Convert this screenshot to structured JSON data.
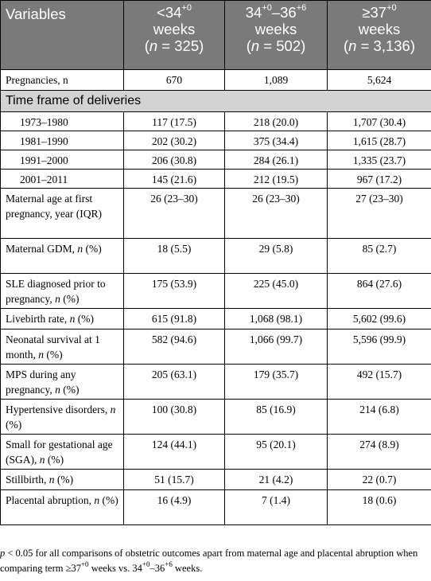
{
  "header": {
    "variables": "Variables",
    "col1": {
      "lt": "<34",
      "sup": "+0",
      "line2": "weeks",
      "n": "(n = 325)"
    },
    "col2": {
      "a": "34",
      "sup1": "+0",
      "dash": "–36",
      "sup2": "+6",
      "line2": "weeks",
      "n": "(n = 502)"
    },
    "col3": {
      "ge": "≥37",
      "sup": "+0",
      "line2": "weeks",
      "n": "(n = 3,136)"
    }
  },
  "rows": [
    {
      "label": "Pregnancies, n",
      "v": [
        "670",
        "1,089",
        "5,624"
      ]
    },
    {
      "section": "Time frame of deliveries"
    },
    {
      "label": "1973–1980",
      "v": [
        "117 (17.5)",
        "218 (20.0)",
        "1,707 (30.4)"
      ]
    },
    {
      "label": "1981–1990",
      "v": [
        "202 (30.2)",
        "375 (34.4)",
        "1,615 (28.7)"
      ]
    },
    {
      "label": "1991–2000",
      "v": [
        "206 (30.8)",
        "284 (26.1)",
        "1,335 (23.7)"
      ]
    },
    {
      "label": "2001–2011",
      "v": [
        "145 (21.6)",
        "212 (19.5)",
        "967 (17.2)"
      ]
    },
    {
      "label": "Maternal age at first pregnancy, year (IQR)",
      "v": [
        "26 (23–30)",
        "26 (23–30)",
        "27 (23–30)"
      ]
    },
    {
      "label": "Maternal GDM, n (%)",
      "v": [
        "18 (5.5)",
        "29 (5.8)",
        "85 (2.7)"
      ]
    },
    {
      "label": "SLE diagnosed prior to pregnancy, n (%)",
      "v": [
        "175 (53.9)",
        "225 (45.0)",
        "864 (27.6)"
      ]
    },
    {
      "label": "Livebirth rate, n (%)",
      "v": [
        "615 (91.8)",
        "1,068 (98.1)",
        "5,602 (99.6)"
      ]
    },
    {
      "label": "Neonatal survival at 1 month, n (%)",
      "v": [
        "582 (94.6)",
        "1,066 (99.7)",
        "5,596 (99.9)"
      ]
    },
    {
      "label": "MPS during any pregnancy, n (%)",
      "v": [
        "205 (63.1)",
        "179 (35.7)",
        "492 (15.7)"
      ]
    },
    {
      "label": "Hypertensive disorders, n (%)",
      "v": [
        "100 (30.8)",
        "85 (16.9)",
        "214 (6.8)"
      ]
    },
    {
      "label": "Small for gestational age (SGA), n (%)",
      "v": [
        "124 (44.1)",
        "95 (20.1)",
        "274 (8.9)"
      ]
    },
    {
      "label": "Stillbirth, n (%)",
      "v": [
        "51 (15.7)",
        "21 (4.2)",
        "22 (0.7)"
      ]
    },
    {
      "label": "Placental abruption, n (%)",
      "v": [
        "16 (4.9)",
        "7 (1.4)",
        "18 (0.6)"
      ]
    }
  ],
  "footnote": {
    "a": "p",
    "b": " < 0.05 for all comparisons of obstetric outcomes apart from maternal age and placental abruption when comparing term ≥37",
    "sup1": "+0",
    "c": " weeks vs. 34",
    "sup2": "+0",
    "d": "–36",
    "sup3": "+6",
    "e": " weeks."
  }
}
